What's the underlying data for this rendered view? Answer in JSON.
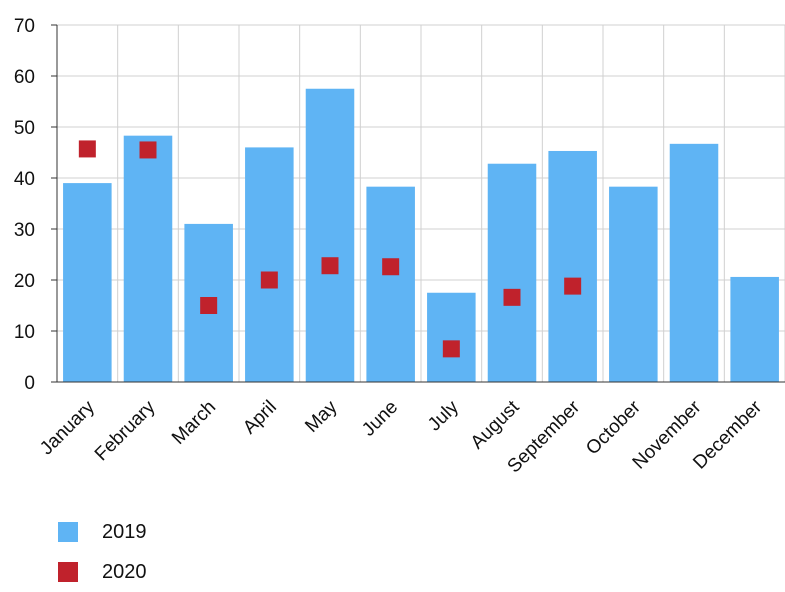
{
  "chart_data": {
    "type": "bar",
    "categories": [
      "January",
      "February",
      "March",
      "April",
      "May",
      "June",
      "July",
      "August",
      "September",
      "October",
      "November",
      "December"
    ],
    "series": [
      {
        "name": "2019",
        "kind": "bar",
        "color": "#5fb4f4",
        "values": [
          39,
          48.3,
          31,
          46,
          57.5,
          38.3,
          17.5,
          42.8,
          45.3,
          38.3,
          46.7,
          20.6
        ]
      },
      {
        "name": "2020",
        "kind": "marker",
        "color": "#c0222c",
        "values": [
          45.7,
          45.5,
          15,
          20,
          22.8,
          22.6,
          6.5,
          16.6,
          18.8,
          null,
          null,
          null
        ]
      }
    ],
    "ylim": [
      0,
      70
    ],
    "yticks": [
      0,
      10,
      20,
      30,
      40,
      50,
      60,
      70
    ],
    "grid": true,
    "legend_position": "bottom-left"
  }
}
